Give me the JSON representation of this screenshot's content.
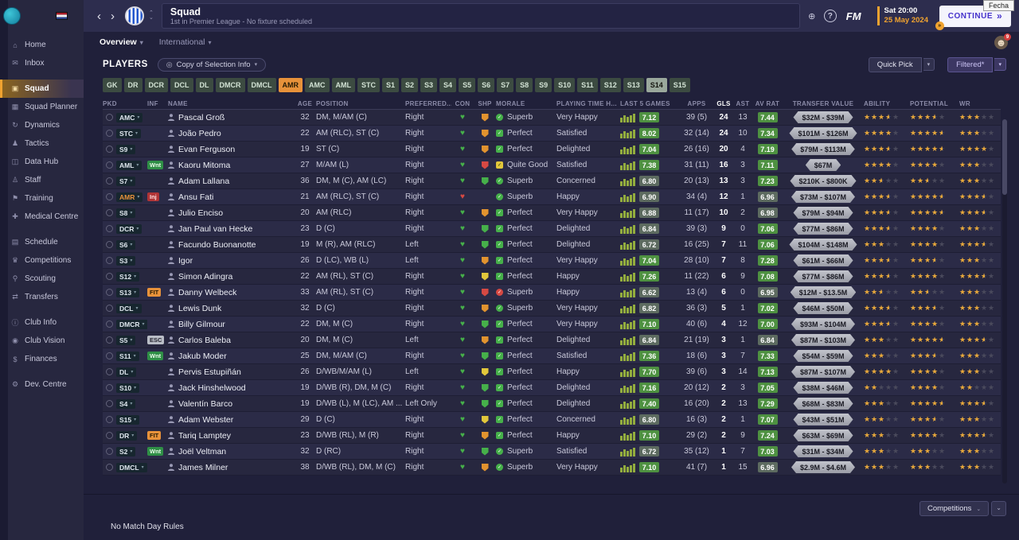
{
  "window": {
    "tooltip": "Fecha"
  },
  "icons": {
    "back": "‹",
    "forward": "›",
    "up": "⌃",
    "down": "⌄",
    "globe": "⊕",
    "help": "?",
    "caret": "▾",
    "caret_small": "⌄",
    "target": "◎",
    "face": "☻"
  },
  "topbar": {
    "title": "Squad",
    "subtitle": "1st in Premier League - No fixture scheduled",
    "fm_label": "FM",
    "date_line1": "Sat 20:00",
    "date_line2": "25 May 2024",
    "continue_label": "CONTINUE",
    "continue_arrows": "»",
    "avatar_badge": "9",
    "continue_notification": "»"
  },
  "sidebar": {
    "active_index": 2,
    "gaps_after": [
      1,
      9,
      13,
      16
    ],
    "items": [
      {
        "label": "Home",
        "icon": "⌂"
      },
      {
        "label": "Inbox",
        "icon": "✉"
      },
      {
        "label": "Squad",
        "icon": "▣"
      },
      {
        "label": "Squad Planner",
        "icon": "▦"
      },
      {
        "label": "Dynamics",
        "icon": "↻"
      },
      {
        "label": "Tactics",
        "icon": "♟"
      },
      {
        "label": "Data Hub",
        "icon": "◫"
      },
      {
        "label": "Staff",
        "icon": "♙"
      },
      {
        "label": "Training",
        "icon": "⚑"
      },
      {
        "label": "Medical Centre",
        "icon": "✚"
      },
      {
        "label": "Schedule",
        "icon": "▤"
      },
      {
        "label": "Competitions",
        "icon": "♛"
      },
      {
        "label": "Scouting",
        "icon": "⚲"
      },
      {
        "label": "Transfers",
        "icon": "⇄"
      },
      {
        "label": "Club Info",
        "icon": "ⓘ"
      },
      {
        "label": "Club Vision",
        "icon": "◉"
      },
      {
        "label": "Finances",
        "icon": "$"
      },
      {
        "label": "Dev. Centre",
        "icon": "⚙"
      }
    ]
  },
  "tabs": [
    {
      "label": "Overview"
    },
    {
      "label": "International"
    }
  ],
  "players_bar": {
    "title": "PLAYERS",
    "selection_info": "Copy of Selection Info",
    "quick_pick": "Quick Pick",
    "filtered": "Filtered*"
  },
  "filters": {
    "buttons": [
      {
        "label": "GK"
      },
      {
        "label": "DR"
      },
      {
        "label": "DCR"
      },
      {
        "label": "DCL"
      },
      {
        "label": "DL"
      },
      {
        "label": "DMCR"
      },
      {
        "label": "DMCL"
      },
      {
        "label": "AMR",
        "variant": "alert"
      },
      {
        "label": "AMC"
      },
      {
        "label": "AML"
      },
      {
        "label": "STC"
      },
      {
        "label": "S1"
      },
      {
        "label": "S2"
      },
      {
        "label": "S3"
      },
      {
        "label": "S4"
      },
      {
        "label": "S5"
      },
      {
        "label": "S6"
      },
      {
        "label": "S7"
      },
      {
        "label": "S8"
      },
      {
        "label": "S9"
      },
      {
        "label": "S10"
      },
      {
        "label": "S11"
      },
      {
        "label": "S12"
      },
      {
        "label": "S13"
      },
      {
        "label": "S14",
        "variant": "selected"
      },
      {
        "label": "S15"
      }
    ]
  },
  "table": {
    "sorted_by": "GLS",
    "headers": [
      "PKD",
      "INF",
      "NAME",
      "AGE",
      "POSITION",
      "PREFERRED...",
      "CON",
      "SHP",
      "MORALE",
      "PLAYING TIME H...",
      "LAST 5 GAMES",
      "APPS",
      "GLS",
      "AST",
      "AV RAT",
      "TRANSFER VALUE",
      "ABILITY",
      "POTENTIAL",
      "WR"
    ],
    "rows": [
      {
        "pkd": "AMC",
        "inf": "",
        "inf_type": "",
        "name": "Pascal Groß",
        "age": "32",
        "position": "DM, M/AM (C)",
        "preferred": "Right",
        "con": "green",
        "shp": "orange",
        "morale": "Superb",
        "morale_icon": "green",
        "playing_time": "Very Happy",
        "last5": "7.12",
        "apps": "39 (5)",
        "gls": "24",
        "ast": "13",
        "av_rat": "7.44",
        "value": "$32M - $39M",
        "ability": 3.5,
        "potential": 3.5,
        "wr": 3
      },
      {
        "pkd": "STC",
        "inf": "",
        "inf_type": "",
        "name": "João Pedro",
        "age": "22",
        "position": "AM (RLC), ST (C)",
        "preferred": "Right",
        "con": "green",
        "shp": "orange",
        "morale": "Perfect",
        "morale_icon": "green",
        "playing_time": "Satisfied",
        "last5": "8.02",
        "apps": "32 (14)",
        "gls": "24",
        "ast": "10",
        "av_rat": "7.34",
        "value": "$101M - $126M",
        "ability": 4,
        "potential": 4.5,
        "wr": 3
      },
      {
        "pkd": "S9",
        "inf": "",
        "inf_type": "",
        "name": "Evan Ferguson",
        "age": "19",
        "position": "ST (C)",
        "preferred": "Right",
        "con": "green",
        "shp": "orange",
        "morale": "Perfect",
        "morale_icon": "green",
        "playing_time": "Delighted",
        "last5": "7.04",
        "apps": "26 (16)",
        "gls": "20",
        "ast": "4",
        "av_rat": "7.19",
        "value": "$79M - $113M",
        "ability": 3.5,
        "potential": 4.5,
        "wr": 4
      },
      {
        "pkd": "AML",
        "inf": "Wnt",
        "inf_type": "wnt",
        "name": "Kaoru Mitoma",
        "age": "27",
        "position": "M/AM (L)",
        "preferred": "Right",
        "con": "green",
        "shp": "red",
        "morale": "Quite Good",
        "morale_icon": "yellow",
        "playing_time": "Satisfied",
        "last5": "7.38",
        "apps": "31 (11)",
        "gls": "16",
        "ast": "3",
        "av_rat": "7.11",
        "value": "$67M",
        "ability": 4,
        "potential": 4,
        "wr": 3
      },
      {
        "pkd": "S7",
        "inf": "",
        "inf_type": "",
        "name": "Adam Lallana",
        "age": "36",
        "position": "DM, M (C), AM (LC)",
        "preferred": "Right",
        "con": "green",
        "shp": "green",
        "morale": "Superb",
        "morale_icon": "green",
        "playing_time": "Concerned",
        "last5": "6.80",
        "apps": "20 (13)",
        "gls": "13",
        "ast": "3",
        "av_rat": "7.23",
        "value": "$210K - $800K",
        "ability": 2.5,
        "potential": 2.5,
        "wr": 3
      },
      {
        "pkd": "AMR",
        "pkd_alert": true,
        "inf": "Inj",
        "inf_type": "inj",
        "name": "Ansu Fati",
        "age": "21",
        "position": "AM (RLC), ST (C)",
        "preferred": "Right",
        "con": "red",
        "shp": "",
        "morale": "Superb",
        "morale_icon": "green",
        "playing_time": "Happy",
        "last5": "6.90",
        "apps": "34 (4)",
        "gls": "12",
        "ast": "1",
        "av_rat": "6.96",
        "value": "$73M - $107M",
        "ability": 3.5,
        "potential": 4.5,
        "wr": 3.5
      },
      {
        "pkd": "S8",
        "inf": "",
        "inf_type": "",
        "name": "Julio Enciso",
        "age": "20",
        "position": "AM (RLC)",
        "preferred": "Right",
        "con": "green",
        "shp": "orange",
        "morale": "Perfect",
        "morale_icon": "green",
        "playing_time": "Very Happy",
        "last5": "6.88",
        "apps": "11 (17)",
        "gls": "10",
        "ast": "2",
        "av_rat": "6.98",
        "value": "$79M - $94M",
        "ability": 3.5,
        "potential": 4.5,
        "wr": 3.5
      },
      {
        "pkd": "DCR",
        "inf": "",
        "inf_type": "",
        "name": "Jan Paul van Hecke",
        "age": "23",
        "position": "D (C)",
        "preferred": "Right",
        "con": "green",
        "shp": "green",
        "morale": "Perfect",
        "morale_icon": "green",
        "playing_time": "Delighted",
        "last5": "6.84",
        "apps": "39 (3)",
        "gls": "9",
        "ast": "0",
        "av_rat": "7.06",
        "value": "$77M - $86M",
        "ability": 3.5,
        "potential": 4,
        "wr": 3
      },
      {
        "pkd": "S6",
        "inf": "",
        "inf_type": "",
        "name": "Facundo Buonanotte",
        "age": "19",
        "position": "M (R), AM (RLC)",
        "preferred": "Left",
        "con": "green",
        "shp": "green",
        "morale": "Perfect",
        "morale_icon": "green",
        "playing_time": "Delighted",
        "last5": "6.72",
        "apps": "16 (25)",
        "gls": "7",
        "ast": "11",
        "av_rat": "7.06",
        "value": "$104M - $148M",
        "ability": 3,
        "potential": 4,
        "wr": 3.5
      },
      {
        "pkd": "S3",
        "inf": "",
        "inf_type": "",
        "name": "Igor",
        "age": "26",
        "position": "D (LC), WB (L)",
        "preferred": "Left",
        "con": "green",
        "shp": "orange",
        "morale": "Perfect",
        "morale_icon": "green",
        "playing_time": "Very Happy",
        "last5": "7.04",
        "apps": "28 (10)",
        "gls": "7",
        "ast": "8",
        "av_rat": "7.28",
        "value": "$61M - $66M",
        "ability": 3.5,
        "potential": 3.5,
        "wr": 3
      },
      {
        "pkd": "S12",
        "inf": "",
        "inf_type": "",
        "name": "Simon Adingra",
        "age": "22",
        "position": "AM (RL), ST (C)",
        "preferred": "Right",
        "con": "green",
        "shp": "yellow",
        "morale": "Perfect",
        "morale_icon": "green",
        "playing_time": "Happy",
        "last5": "7.26",
        "apps": "11 (22)",
        "gls": "6",
        "ast": "9",
        "av_rat": "7.08",
        "value": "$77M - $86M",
        "ability": 3.5,
        "potential": 4,
        "wr": 3.5
      },
      {
        "pkd": "S13",
        "inf": "FIT",
        "inf_type": "fit",
        "name": "Danny Welbeck",
        "age": "33",
        "position": "AM (RL), ST (C)",
        "preferred": "Right",
        "con": "green",
        "shp": "red",
        "morale": "Superb",
        "morale_icon": "red",
        "playing_time": "Happy",
        "last5": "6.62",
        "apps": "13 (4)",
        "gls": "6",
        "ast": "0",
        "av_rat": "6.95",
        "value": "$12M - $13.5M",
        "ability": 2.5,
        "potential": 2.5,
        "wr": 3
      },
      {
        "pkd": "DCL",
        "inf": "",
        "inf_type": "",
        "name": "Lewis Dunk",
        "age": "32",
        "position": "D (C)",
        "preferred": "Right",
        "con": "green",
        "shp": "orange",
        "morale": "Superb",
        "morale_icon": "green",
        "playing_time": "Very Happy",
        "last5": "6.82",
        "apps": "36 (3)",
        "gls": "5",
        "ast": "1",
        "av_rat": "7.02",
        "value": "$46M - $50M",
        "ability": 3.5,
        "potential": 3.5,
        "wr": 3
      },
      {
        "pkd": "DMCR",
        "inf": "",
        "inf_type": "",
        "name": "Billy Gilmour",
        "age": "22",
        "position": "DM, M (C)",
        "preferred": "Right",
        "con": "green",
        "shp": "green",
        "morale": "Perfect",
        "morale_icon": "green",
        "playing_time": "Very Happy",
        "last5": "7.10",
        "apps": "40 (6)",
        "gls": "4",
        "ast": "12",
        "av_rat": "7.00",
        "value": "$93M - $104M",
        "ability": 3.5,
        "potential": 4,
        "wr": 3
      },
      {
        "pkd": "S5",
        "inf": "ESC",
        "inf_type": "esc",
        "name": "Carlos Baleba",
        "age": "20",
        "position": "DM, M (C)",
        "preferred": "Left",
        "con": "green",
        "shp": "orange",
        "morale": "Perfect",
        "morale_icon": "green",
        "playing_time": "Delighted",
        "last5": "6.84",
        "apps": "21 (19)",
        "gls": "3",
        "ast": "1",
        "av_rat": "6.84",
        "value": "$87M - $103M",
        "ability": 3,
        "potential": 4.5,
        "wr": 3.5
      },
      {
        "pkd": "S11",
        "inf": "Wnt",
        "inf_type": "wnt",
        "name": "Jakub Moder",
        "age": "25",
        "position": "DM, M/AM (C)",
        "preferred": "Right",
        "con": "green",
        "shp": "green",
        "morale": "Perfect",
        "morale_icon": "green",
        "playing_time": "Satisfied",
        "last5": "7.36",
        "apps": "18 (6)",
        "gls": "3",
        "ast": "7",
        "av_rat": "7.33",
        "value": "$54M - $59M",
        "ability": 3,
        "potential": 3.5,
        "wr": 3
      },
      {
        "pkd": "DL",
        "inf": "",
        "inf_type": "",
        "name": "Pervis Estupiñán",
        "age": "26",
        "position": "D/WB/M/AM (L)",
        "preferred": "Left",
        "con": "green",
        "shp": "yellow",
        "morale": "Perfect",
        "morale_icon": "green",
        "playing_time": "Happy",
        "last5": "7.70",
        "apps": "39 (6)",
        "gls": "3",
        "ast": "14",
        "av_rat": "7.13",
        "value": "$87M - $107M",
        "ability": 4,
        "potential": 4,
        "wr": 3
      },
      {
        "pkd": "S10",
        "inf": "",
        "inf_type": "",
        "name": "Jack Hinshelwood",
        "age": "19",
        "position": "D/WB (R), DM, M (C)",
        "preferred": "Right",
        "con": "green",
        "shp": "green",
        "morale": "Perfect",
        "morale_icon": "green",
        "playing_time": "Delighted",
        "last5": "7.16",
        "apps": "20 (12)",
        "gls": "2",
        "ast": "3",
        "av_rat": "7.05",
        "value": "$38M - $46M",
        "ability": 2,
        "potential": 4,
        "wr": 2
      },
      {
        "pkd": "S4",
        "inf": "",
        "inf_type": "",
        "name": "Valentín Barco",
        "age": "19",
        "position": "D/WB (L), M (LC), AM ...",
        "preferred": "Left Only",
        "con": "green",
        "shp": "green",
        "morale": "Perfect",
        "morale_icon": "green",
        "playing_time": "Delighted",
        "last5": "7.40",
        "apps": "16 (20)",
        "gls": "2",
        "ast": "13",
        "av_rat": "7.29",
        "value": "$68M - $83M",
        "ability": 3,
        "potential": 4.5,
        "wr": 3.5
      },
      {
        "pkd": "S15",
        "inf": "",
        "inf_type": "",
        "name": "Adam Webster",
        "age": "29",
        "position": "D (C)",
        "preferred": "Right",
        "con": "green",
        "shp": "yellow",
        "morale": "Perfect",
        "morale_icon": "green",
        "playing_time": "Concerned",
        "last5": "6.80",
        "apps": "16 (3)",
        "gls": "2",
        "ast": "1",
        "av_rat": "7.07",
        "value": "$43M - $51M",
        "ability": 3,
        "potential": 3.5,
        "wr": 3
      },
      {
        "pkd": "DR",
        "inf": "FIT",
        "inf_type": "fit",
        "name": "Tariq Lamptey",
        "age": "23",
        "position": "D/WB (RL), M (R)",
        "preferred": "Right",
        "con": "green",
        "shp": "orange",
        "morale": "Perfect",
        "morale_icon": "green",
        "playing_time": "Happy",
        "last5": "7.10",
        "apps": "29 (2)",
        "gls": "2",
        "ast": "9",
        "av_rat": "7.24",
        "value": "$63M - $69M",
        "ability": 3,
        "potential": 4,
        "wr": 3.5
      },
      {
        "pkd": "S2",
        "inf": "Wnt",
        "inf_type": "wnt",
        "name": "Joël Veltman",
        "age": "32",
        "position": "D (RC)",
        "preferred": "Right",
        "con": "green",
        "shp": "green",
        "morale": "Superb",
        "morale_icon": "green",
        "playing_time": "Satisfied",
        "last5": "6.72",
        "apps": "35 (12)",
        "gls": "1",
        "ast": "7",
        "av_rat": "7.03",
        "value": "$31M - $34M",
        "ability": 3,
        "potential": 3,
        "wr": 3
      },
      {
        "pkd": "DMCL",
        "inf": "",
        "inf_type": "",
        "name": "James Milner",
        "age": "38",
        "position": "D/WB (RL), DM, M (C)",
        "preferred": "Right",
        "con": "green",
        "shp": "orange",
        "morale": "Superb",
        "morale_icon": "green",
        "playing_time": "Very Happy",
        "last5": "7.10",
        "apps": "41 (7)",
        "gls": "1",
        "ast": "15",
        "av_rat": "6.96",
        "value": "$2.9M - $4.6M",
        "ability": 3,
        "potential": 3,
        "wr": 3
      }
    ]
  },
  "footer": {
    "note": "No Match Day Rules",
    "competitions": "Competitions"
  },
  "colors": {
    "accent_orange": "#f0a330",
    "status_green": "#46b04a",
    "status_orange": "#e2932f",
    "status_red": "#d64943",
    "status_yellow": "#e2c73b",
    "rating_good": "#4e9141"
  }
}
